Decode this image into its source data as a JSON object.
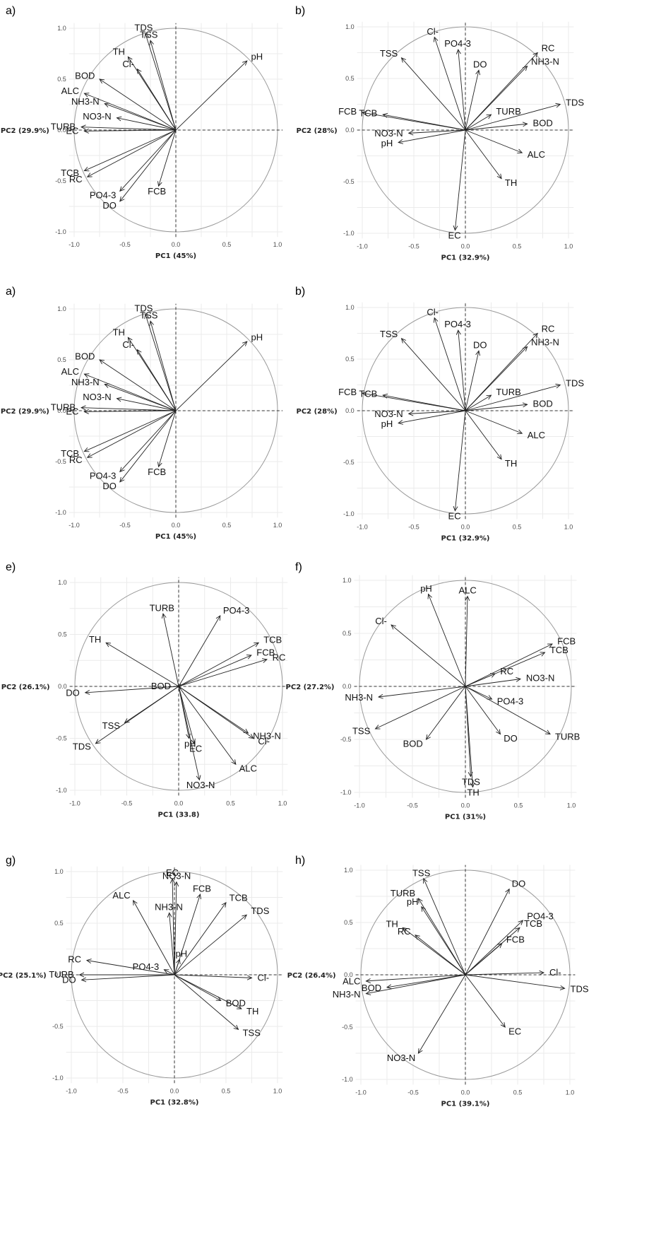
{
  "chart_data": [
    {
      "type": "scatter",
      "panel": "a)",
      "xlabel": "PC1 (45%)",
      "ylabel": "PC2 (29.9%)",
      "xlim": [
        -1.05,
        1.05
      ],
      "ylim": [
        -1.05,
        1.05
      ],
      "ticks": [
        "-1.0",
        "-0.5",
        "0.0",
        "0.5",
        "1.0"
      ],
      "grid": true,
      "variables": [
        {
          "name": "TDS",
          "x": -0.3,
          "y": 0.95
        },
        {
          "name": "TSS",
          "x": -0.25,
          "y": 0.88
        },
        {
          "name": "TH",
          "x": -0.47,
          "y": 0.72
        },
        {
          "name": "Cl-",
          "x": -0.38,
          "y": 0.6
        },
        {
          "name": "BOD",
          "x": -0.75,
          "y": 0.5
        },
        {
          "name": "ALC",
          "x": -0.9,
          "y": 0.36
        },
        {
          "name": "NH3-N",
          "x": -0.7,
          "y": 0.26
        },
        {
          "name": "NO3-N",
          "x": -0.58,
          "y": 0.12
        },
        {
          "name": "TURB",
          "x": -0.93,
          "y": 0.03
        },
        {
          "name": "EC",
          "x": -0.9,
          "y": -0.01
        },
        {
          "name": "TCB",
          "x": -0.9,
          "y": -0.4
        },
        {
          "name": "RC",
          "x": -0.87,
          "y": -0.46
        },
        {
          "name": "PO4-3",
          "x": -0.55,
          "y": -0.6
        },
        {
          "name": "DO",
          "x": -0.55,
          "y": -0.7
        },
        {
          "name": "FCB",
          "x": -0.17,
          "y": -0.55
        },
        {
          "name": "pH",
          "x": 0.7,
          "y": 0.68
        }
      ]
    },
    {
      "type": "scatter",
      "panel": "b)",
      "xlabel": "PC1 (32.9%)",
      "ylabel": "PC2 (28%)",
      "xlim": [
        -1.05,
        1.05
      ],
      "ylim": [
        -1.05,
        1.05
      ],
      "ticks": [
        "-1.0",
        "-0.5",
        "0.0",
        "0.5",
        "1.0"
      ],
      "grid": true,
      "variables": [
        {
          "name": "Cl-",
          "x": -0.3,
          "y": 0.9
        },
        {
          "name": "TSS",
          "x": -0.62,
          "y": 0.7
        },
        {
          "name": "PO4-3",
          "x": -0.07,
          "y": 0.78
        },
        {
          "name": "DO",
          "x": 0.13,
          "y": 0.58
        },
        {
          "name": "RC",
          "x": 0.7,
          "y": 0.75
        },
        {
          "name": "NH3-N",
          "x": 0.6,
          "y": 0.62
        },
        {
          "name": "TURB",
          "x": 0.25,
          "y": 0.15
        },
        {
          "name": "TDS",
          "x": 0.92,
          "y": 0.25
        },
        {
          "name": "BOD",
          "x": 0.6,
          "y": 0.06
        },
        {
          "name": "ALC",
          "x": 0.55,
          "y": -0.22
        },
        {
          "name": "TH",
          "x": 0.35,
          "y": -0.47
        },
        {
          "name": "EC",
          "x": -0.1,
          "y": -0.97
        },
        {
          "name": "pH",
          "x": -0.65,
          "y": -0.12
        },
        {
          "name": "NO3-N",
          "x": -0.55,
          "y": -0.03
        },
        {
          "name": "TCB",
          "x": -0.8,
          "y": 0.15
        },
        {
          "name": "FCB",
          "x": -1.0,
          "y": 0.17
        }
      ]
    },
    {
      "type": "scatter",
      "panel": "a)",
      "xlabel": "PC1 (45%)",
      "ylabel": "PC2 (29.9%)",
      "xlim": [
        -1.05,
        1.05
      ],
      "ylim": [
        -1.05,
        1.05
      ],
      "ticks": [
        "-1.0",
        "-0.5",
        "0.0",
        "0.5",
        "1.0"
      ],
      "grid": true,
      "variables": [
        {
          "name": "TDS",
          "x": -0.3,
          "y": 0.95
        },
        {
          "name": "TSS",
          "x": -0.25,
          "y": 0.88
        },
        {
          "name": "TH",
          "x": -0.47,
          "y": 0.72
        },
        {
          "name": "Cl-",
          "x": -0.38,
          "y": 0.6
        },
        {
          "name": "BOD",
          "x": -0.75,
          "y": 0.5
        },
        {
          "name": "ALC",
          "x": -0.9,
          "y": 0.36
        },
        {
          "name": "NH3-N",
          "x": -0.7,
          "y": 0.26
        },
        {
          "name": "NO3-N",
          "x": -0.58,
          "y": 0.12
        },
        {
          "name": "TURB",
          "x": -0.93,
          "y": 0.03
        },
        {
          "name": "EC",
          "x": -0.9,
          "y": -0.01
        },
        {
          "name": "TCB",
          "x": -0.9,
          "y": -0.4
        },
        {
          "name": "RC",
          "x": -0.87,
          "y": -0.46
        },
        {
          "name": "PO4-3",
          "x": -0.55,
          "y": -0.6
        },
        {
          "name": "DO",
          "x": -0.55,
          "y": -0.7
        },
        {
          "name": "FCB",
          "x": -0.17,
          "y": -0.55
        },
        {
          "name": "pH",
          "x": 0.7,
          "y": 0.68
        }
      ]
    },
    {
      "type": "scatter",
      "panel": "b)",
      "xlabel": "PC1 (32.9%)",
      "ylabel": "PC2 (28%)",
      "xlim": [
        -1.05,
        1.05
      ],
      "ylim": [
        -1.05,
        1.05
      ],
      "ticks": [
        "-1.0",
        "-0.5",
        "0.0",
        "0.5",
        "1.0"
      ],
      "grid": true,
      "variables": [
        {
          "name": "Cl-",
          "x": -0.3,
          "y": 0.9
        },
        {
          "name": "TSS",
          "x": -0.62,
          "y": 0.7
        },
        {
          "name": "PO4-3",
          "x": -0.07,
          "y": 0.78
        },
        {
          "name": "DO",
          "x": 0.13,
          "y": 0.58
        },
        {
          "name": "RC",
          "x": 0.7,
          "y": 0.75
        },
        {
          "name": "NH3-N",
          "x": 0.6,
          "y": 0.62
        },
        {
          "name": "TURB",
          "x": 0.25,
          "y": 0.15
        },
        {
          "name": "TDS",
          "x": 0.92,
          "y": 0.25
        },
        {
          "name": "BOD",
          "x": 0.6,
          "y": 0.06
        },
        {
          "name": "ALC",
          "x": 0.55,
          "y": -0.22
        },
        {
          "name": "TH",
          "x": 0.35,
          "y": -0.47
        },
        {
          "name": "EC",
          "x": -0.1,
          "y": -0.97
        },
        {
          "name": "pH",
          "x": -0.65,
          "y": -0.12
        },
        {
          "name": "NO3-N",
          "x": -0.55,
          "y": -0.03
        },
        {
          "name": "TCB",
          "x": -0.8,
          "y": 0.15
        },
        {
          "name": "FCB",
          "x": -1.0,
          "y": 0.17
        }
      ]
    },
    {
      "type": "scatter",
      "panel": "e)",
      "xlabel": "PC1 (33.8)",
      "ylabel": "PC2 (26.1%)",
      "xlim": [
        -1.05,
        1.05
      ],
      "ylim": [
        -1.05,
        1.05
      ],
      "ticks": [
        "-1.0",
        "-0.5",
        "0.0",
        "0.5",
        "1.0"
      ],
      "grid": true,
      "variables": [
        {
          "name": "TURB",
          "x": -0.15,
          "y": 0.7
        },
        {
          "name": "PO4-3",
          "x": 0.4,
          "y": 0.68
        },
        {
          "name": "TCB",
          "x": 0.77,
          "y": 0.42
        },
        {
          "name": "FCB",
          "x": 0.7,
          "y": 0.3
        },
        {
          "name": "RC",
          "x": 0.85,
          "y": 0.26
        },
        {
          "name": "TH",
          "x": -0.7,
          "y": 0.42
        },
        {
          "name": "BOD",
          "x": -0.02,
          "y": 0.0
        },
        {
          "name": "DO",
          "x": -0.9,
          "y": -0.06
        },
        {
          "name": "TSS",
          "x": -0.52,
          "y": -0.35
        },
        {
          "name": "TDS",
          "x": -0.8,
          "y": -0.55
        },
        {
          "name": "pH",
          "x": 0.1,
          "y": -0.5
        },
        {
          "name": "EC",
          "x": 0.15,
          "y": -0.55
        },
        {
          "name": "NH3-N",
          "x": 0.67,
          "y": -0.45
        },
        {
          "name": "Cl-",
          "x": 0.72,
          "y": -0.5
        },
        {
          "name": "ALC",
          "x": 0.55,
          "y": -0.75
        },
        {
          "name": "NO3-N",
          "x": 0.2,
          "y": -0.9
        }
      ]
    },
    {
      "type": "scatter",
      "panel": "f)",
      "xlabel": "PC1 (31%)",
      "ylabel": "PC2 (27.2%)",
      "xlim": [
        -1.05,
        1.05
      ],
      "ylim": [
        -1.05,
        1.05
      ],
      "ticks": [
        "-1.0",
        "-0.5",
        "0.0",
        "0.5",
        "1.0"
      ],
      "grid": true,
      "variables": [
        {
          "name": "pH",
          "x": -0.35,
          "y": 0.87
        },
        {
          "name": "ALC",
          "x": 0.02,
          "y": 0.85
        },
        {
          "name": "Cl-",
          "x": -0.7,
          "y": 0.58
        },
        {
          "name": "FCB",
          "x": 0.82,
          "y": 0.4
        },
        {
          "name": "TCB",
          "x": 0.75,
          "y": 0.32
        },
        {
          "name": "RC",
          "x": 0.28,
          "y": 0.12
        },
        {
          "name": "NO3-N",
          "x": 0.52,
          "y": 0.07
        },
        {
          "name": "NH3-N",
          "x": -0.82,
          "y": -0.1
        },
        {
          "name": "PO4-3",
          "x": 0.25,
          "y": -0.12
        },
        {
          "name": "TURB",
          "x": 0.8,
          "y": -0.45
        },
        {
          "name": "DO",
          "x": 0.33,
          "y": -0.45
        },
        {
          "name": "BOD",
          "x": -0.37,
          "y": -0.5
        },
        {
          "name": "TSS",
          "x": -0.85,
          "y": -0.4
        },
        {
          "name": "TDS",
          "x": 0.05,
          "y": -0.85
        },
        {
          "name": "TH",
          "x": 0.07,
          "y": -0.95
        }
      ]
    },
    {
      "type": "scatter",
      "panel": "g)",
      "xlabel": "PC1 (32.8%)",
      "ylabel": "PC2 (25.1%)",
      "xlim": [
        -1.05,
        1.05
      ],
      "ylim": [
        -1.05,
        1.05
      ],
      "ticks": [
        "-1.0",
        "-0.5",
        "0.0",
        "0.5",
        "1.0"
      ],
      "grid": true,
      "variables": [
        {
          "name": "EC",
          "x": -0.02,
          "y": 0.93
        },
        {
          "name": "NO3-N",
          "x": 0.02,
          "y": 0.9
        },
        {
          "name": "FCB",
          "x": 0.25,
          "y": 0.78
        },
        {
          "name": "ALC",
          "x": -0.4,
          "y": 0.72
        },
        {
          "name": "NH3-N",
          "x": -0.05,
          "y": 0.6
        },
        {
          "name": "TCB",
          "x": 0.5,
          "y": 0.7
        },
        {
          "name": "TDS",
          "x": 0.7,
          "y": 0.58
        },
        {
          "name": "pH",
          "x": 0.05,
          "y": 0.15
        },
        {
          "name": "PO4-3",
          "x": -0.1,
          "y": 0.05
        },
        {
          "name": "RC",
          "x": -0.85,
          "y": 0.14
        },
        {
          "name": "TURB",
          "x": -0.92,
          "y": 0.0
        },
        {
          "name": "DO",
          "x": -0.9,
          "y": -0.05
        },
        {
          "name": "Cl-",
          "x": 0.75,
          "y": -0.03
        },
        {
          "name": "BOD",
          "x": 0.45,
          "y": -0.25
        },
        {
          "name": "TH",
          "x": 0.65,
          "y": -0.33
        },
        {
          "name": "TSS",
          "x": 0.62,
          "y": -0.53
        }
      ]
    },
    {
      "type": "scatter",
      "panel": "h)",
      "xlabel": "PC1 (39.1%)",
      "ylabel": "PC2 (26.4%)",
      "xlim": [
        -1.05,
        1.05
      ],
      "ylim": [
        -1.05,
        1.05
      ],
      "ticks": [
        "-1.0",
        "-0.5",
        "0.0",
        "0.5",
        "1.0"
      ],
      "grid": true,
      "variables": [
        {
          "name": "TSS",
          "x": -0.4,
          "y": 0.92
        },
        {
          "name": "TURB",
          "x": -0.45,
          "y": 0.73
        },
        {
          "name": "pH",
          "x": -0.42,
          "y": 0.65
        },
        {
          "name": "DO",
          "x": 0.42,
          "y": 0.82
        },
        {
          "name": "TH",
          "x": -0.6,
          "y": 0.45
        },
        {
          "name": "RC",
          "x": -0.48,
          "y": 0.38
        },
        {
          "name": "PO4-3",
          "x": 0.55,
          "y": 0.52
        },
        {
          "name": "TCB",
          "x": 0.52,
          "y": 0.45
        },
        {
          "name": "FCB",
          "x": 0.35,
          "y": 0.3
        },
        {
          "name": "Cl-",
          "x": 0.75,
          "y": 0.02
        },
        {
          "name": "TDS",
          "x": 0.95,
          "y": -0.13
        },
        {
          "name": "ALC",
          "x": -0.95,
          "y": -0.06
        },
        {
          "name": "BOD",
          "x": -0.75,
          "y": -0.12
        },
        {
          "name": "NH3-N",
          "x": -0.95,
          "y": -0.18
        },
        {
          "name": "EC",
          "x": 0.38,
          "y": -0.5
        },
        {
          "name": "NO3-N",
          "x": -0.45,
          "y": -0.75
        }
      ]
    }
  ]
}
